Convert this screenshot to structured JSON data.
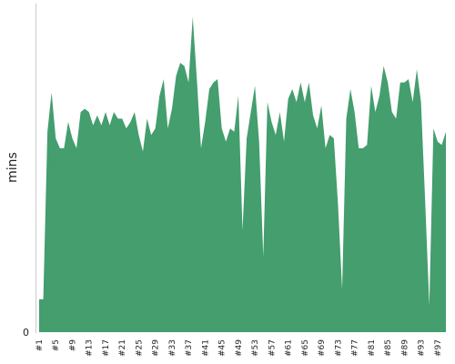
{
  "chart_data": {
    "type": "area",
    "ylabel": "mins",
    "ytick_zero": "0",
    "x_ticks_shown": [
      "#1",
      "#5",
      "#9",
      "#13",
      "#17",
      "#21",
      "#25",
      "#29",
      "#33",
      "#37",
      "#41",
      "#45",
      "#49",
      "#53",
      "#57",
      "#61",
      "#65",
      "#69",
      "#73",
      "#77",
      "#81",
      "#85",
      "#89",
      "#93",
      "#97"
    ],
    "categories": [
      "#1",
      "#2",
      "#3",
      "#4",
      "#5",
      "#6",
      "#7",
      "#8",
      "#9",
      "#10",
      "#11",
      "#12",
      "#13",
      "#14",
      "#15",
      "#16",
      "#17",
      "#18",
      "#19",
      "#20",
      "#21",
      "#22",
      "#23",
      "#24",
      "#25",
      "#26",
      "#27",
      "#28",
      "#29",
      "#30",
      "#31",
      "#32",
      "#33",
      "#34",
      "#35",
      "#36",
      "#37",
      "#38",
      "#39",
      "#40",
      "#41",
      "#42",
      "#43",
      "#44",
      "#45",
      "#46",
      "#47",
      "#48",
      "#49",
      "#50",
      "#51",
      "#52",
      "#53",
      "#54",
      "#55",
      "#56",
      "#57",
      "#58",
      "#59",
      "#60",
      "#61",
      "#62",
      "#63",
      "#64",
      "#65",
      "#66",
      "#67",
      "#68",
      "#69",
      "#70",
      "#71",
      "#72",
      "#73",
      "#74",
      "#75",
      "#76",
      "#77",
      "#78",
      "#79",
      "#80",
      "#81",
      "#82",
      "#83",
      "#84",
      "#85",
      "#86",
      "#87",
      "#88",
      "#89",
      "#90",
      "#91",
      "#92",
      "#93",
      "#94",
      "#95",
      "#96",
      "#97",
      "#98",
      "#99"
    ],
    "values": [
      10,
      10,
      61,
      73,
      59,
      56,
      56,
      64,
      59,
      56,
      67,
      68,
      67,
      63,
      66,
      63,
      67,
      63,
      67,
      65,
      65,
      62,
      64,
      67,
      60,
      55,
      65,
      60,
      62,
      72,
      77,
      62,
      68,
      78,
      82,
      81,
      76,
      96,
      77,
      56,
      64,
      74,
      76,
      77,
      62,
      58,
      62,
      61,
      72,
      31,
      59,
      67,
      75,
      58,
      23,
      70,
      64,
      60,
      67,
      58,
      71,
      74,
      70,
      76,
      70,
      76,
      66,
      62,
      69,
      56,
      60,
      59,
      39,
      13,
      65,
      74,
      67,
      56,
      56,
      57,
      75,
      67,
      72,
      81,
      76,
      67,
      65,
      76,
      76,
      77,
      70,
      80,
      70,
      40,
      8,
      62,
      58,
      57,
      61
    ],
    "ylim": [
      0,
      100
    ],
    "grid": false,
    "fill_color": "#449e6e"
  }
}
